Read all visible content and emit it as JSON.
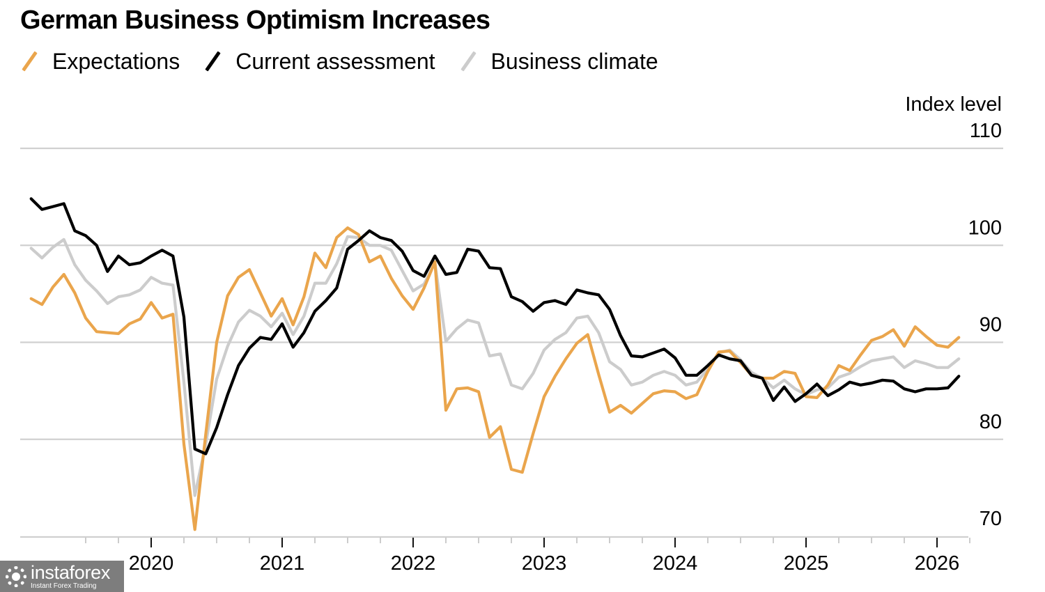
{
  "chart_data": {
    "type": "line",
    "title": "German Business Optimism Increases",
    "ylabel": "Index level",
    "xlabel": "",
    "ylim": [
      70,
      110
    ],
    "yticks": [
      70,
      80,
      90,
      100,
      110
    ],
    "grid": true,
    "legend_position": "top-left",
    "x_start": "2019-02",
    "x_end": "2026-03",
    "x_frequency": "monthly",
    "xtick_labels": [
      "2020",
      "2021",
      "2022",
      "2023",
      "2024",
      "2025",
      "2026"
    ],
    "series": [
      {
        "name": "Expectations",
        "color": "#eaa54c",
        "values": [
          94.5,
          93.9,
          95.7,
          97.0,
          95.1,
          92.5,
          91.1,
          91.0,
          90.9,
          91.9,
          92.4,
          94.1,
          92.5,
          92.9,
          79.5,
          70.7,
          80.5,
          90.0,
          94.8,
          96.7,
          97.5,
          95.1,
          92.7,
          94.5,
          91.8,
          94.7,
          99.2,
          97.7,
          100.8,
          101.8,
          101.1,
          98.3,
          98.9,
          96.6,
          94.8,
          93.4,
          95.6,
          98.3,
          83.0,
          85.2,
          85.3,
          84.9,
          80.2,
          81.3,
          76.9,
          76.6,
          80.6,
          84.4,
          86.5,
          88.3,
          89.9,
          90.8,
          86.7,
          82.8,
          83.5,
          82.7,
          83.7,
          84.7,
          85.0,
          84.9,
          84.2,
          84.6,
          87.0,
          89.0,
          89.1,
          87.9,
          86.6,
          86.3,
          86.3,
          87.0,
          86.8,
          84.4,
          84.3,
          85.6,
          87.6,
          87.1,
          88.7,
          90.2,
          90.6,
          91.3,
          89.6,
          91.6,
          90.6,
          89.7,
          89.5,
          90.5
        ]
      },
      {
        "name": "Current assessment",
        "color": "#000000",
        "values": [
          104.8,
          103.7,
          104.0,
          104.3,
          101.5,
          101.0,
          100.0,
          97.3,
          98.9,
          98.0,
          98.2,
          98.9,
          99.5,
          98.9,
          92.6,
          79.0,
          78.5,
          81.2,
          84.6,
          87.6,
          89.4,
          90.5,
          90.3,
          91.9,
          89.5,
          91.0,
          93.2,
          94.3,
          95.6,
          99.6,
          100.5,
          101.5,
          100.8,
          100.5,
          99.4,
          97.4,
          96.8,
          98.9,
          97.0,
          97.2,
          99.6,
          99.4,
          97.7,
          97.6,
          94.7,
          94.2,
          93.2,
          94.1,
          94.3,
          93.9,
          95.4,
          95.1,
          94.9,
          93.4,
          90.7,
          88.6,
          88.5,
          88.9,
          89.3,
          88.4,
          86.6,
          86.6,
          87.6,
          88.7,
          88.3,
          88.1,
          86.6,
          86.3,
          84.0,
          85.4,
          83.9,
          84.7,
          85.7,
          84.5,
          85.1,
          85.9,
          85.6,
          85.8,
          86.1,
          86.0,
          85.2,
          84.9,
          85.2,
          85.2,
          85.3,
          86.5
        ]
      },
      {
        "name": "Business climate",
        "color": "#cccccc",
        "values": [
          99.7,
          98.7,
          99.8,
          100.6,
          98.0,
          96.4,
          95.3,
          94.0,
          94.7,
          94.9,
          95.4,
          96.7,
          96.1,
          95.9,
          85.9,
          74.2,
          79.5,
          86.2,
          89.6,
          92.1,
          93.3,
          92.7,
          91.6,
          93.0,
          90.8,
          92.7,
          96.1,
          96.1,
          98.1,
          100.9,
          100.8,
          100.0,
          100.0,
          99.5,
          97.4,
          95.3,
          96.0,
          98.2,
          90.1,
          91.4,
          92.3,
          92.0,
          88.6,
          88.8,
          85.6,
          85.2,
          86.8,
          89.2,
          90.3,
          91.0,
          92.5,
          92.7,
          91.0,
          88.0,
          87.2,
          85.6,
          85.9,
          86.6,
          87.0,
          86.6,
          85.6,
          85.9,
          87.3,
          88.9,
          89.2,
          88.2,
          86.9,
          86.3,
          85.3,
          86.1,
          85.2,
          84.6,
          85.1,
          85.3,
          86.4,
          86.8,
          87.5,
          88.1,
          88.3,
          88.5,
          87.4,
          88.1,
          87.8,
          87.4,
          87.4,
          88.3
        ]
      }
    ]
  },
  "watermark": {
    "brand": "instaforex",
    "tagline": "Instant Forex Trading"
  }
}
